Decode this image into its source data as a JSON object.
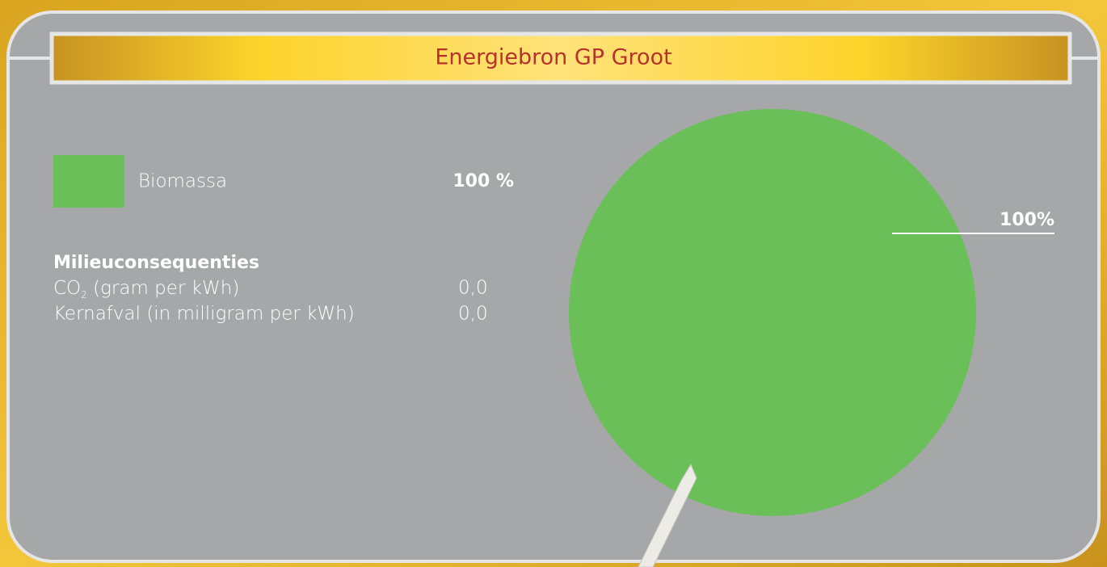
{
  "chart_data": {
    "type": "pie",
    "title": "Energiebron GP Groot",
    "categories": [
      "Biomassa"
    ],
    "values": [
      100
    ],
    "colors": [
      "#6abf59"
    ],
    "value_labels": [
      "100%"
    ],
    "legend_value_labels": [
      "100 %"
    ],
    "notes": {
      "heading": "Milieuconsequenties",
      "rows": [
        {
          "label": "CO",
          "subscript": "2",
          "suffix": " (gram per kWh)",
          "value": "0,0"
        },
        {
          "label": "Kernafval (in milligram per kWh)",
          "value": "0,0"
        }
      ]
    }
  }
}
